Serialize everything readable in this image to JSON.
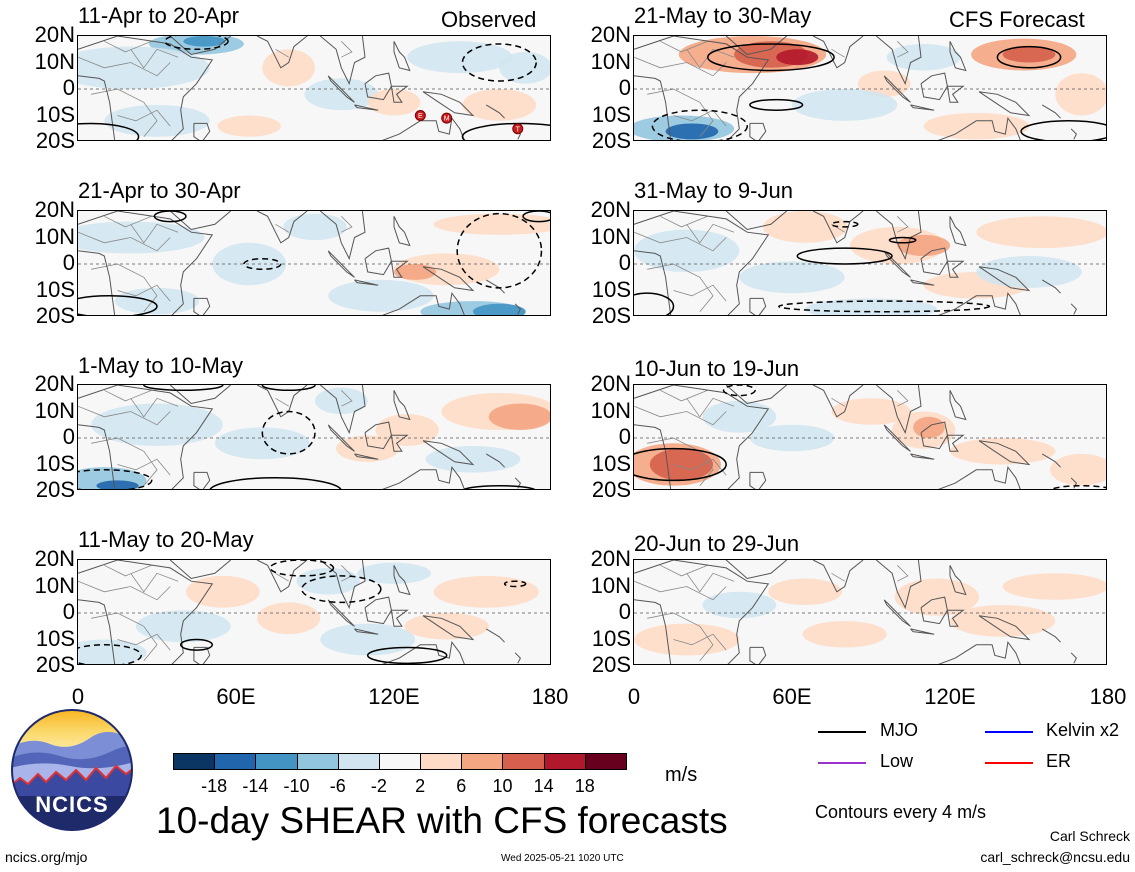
{
  "header": {
    "observed_label": "Observed",
    "forecast_label": "CFS Forecast"
  },
  "panels": {
    "observed": [
      {
        "title": "11-Apr to 20-Apr"
      },
      {
        "title": "21-Apr to 30-Apr"
      },
      {
        "title": "1-May to 10-May"
      },
      {
        "title": "11-May to 20-May"
      }
    ],
    "forecast": [
      {
        "title": "21-May to 30-May"
      },
      {
        "title": "31-May to 9-Jun"
      },
      {
        "title": "10-Jun to 19-Jun"
      },
      {
        "title": "20-Jun to 29-Jun"
      }
    ]
  },
  "latitude_labels": [
    "20N",
    "10N",
    "0",
    "10S",
    "20S"
  ],
  "longitude_labels": [
    "0",
    "60E",
    "120E",
    "180"
  ],
  "storm_markers": [
    {
      "label": "E",
      "lon": 130,
      "lat": -10
    },
    {
      "label": "M",
      "lon": 140,
      "lat": -11
    },
    {
      "label": "T",
      "lon": 167,
      "lat": -15
    }
  ],
  "colorbar": {
    "ticks": [
      "-18",
      "-14",
      "-10",
      "-6",
      "-2",
      "2",
      "6",
      "10",
      "14",
      "18"
    ],
    "colors": [
      "#0b3563",
      "#2166ac",
      "#4393c3",
      "#92c5de",
      "#d1e5f0",
      "#f7f7f7",
      "#fddbc7",
      "#f4a582",
      "#d6604d",
      "#b2182b",
      "#67001f"
    ],
    "units": "m/s"
  },
  "legend": {
    "items": [
      {
        "label": "MJO",
        "color": "#000000"
      },
      {
        "label": "Kelvin x2",
        "color": "#0000ff"
      },
      {
        "label": "Low",
        "color": "#9933cc"
      },
      {
        "label": "ER",
        "color": "#ff0000"
      }
    ],
    "contour_note": "Contours every 4 m/s"
  },
  "footer": {
    "main_title": "10-day SHEAR with CFS forecasts",
    "logo_text": "NCICS",
    "website": "ncics.org/mjo",
    "timestamp": "Wed 2025-05-21 1020 UTC",
    "author": "Carl Schreck",
    "email": "carl_schreck@ncsu.edu"
  }
}
